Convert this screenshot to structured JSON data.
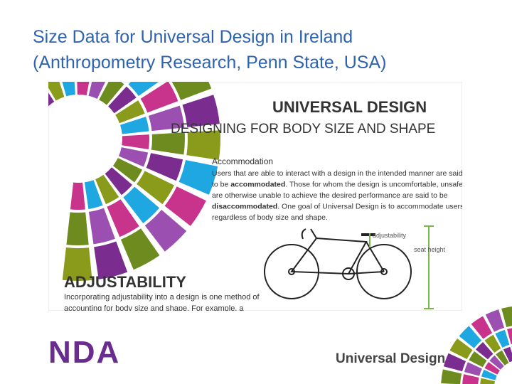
{
  "header": {
    "title": [
      "Size Data for Universal Design in Ireland",
      "(Anthropometry Research, Penn State, USA)"
    ]
  },
  "figure": {
    "heading": "UNIVERSAL DESIGN",
    "subheading": "DESIGNING FOR BODY SIZE AND SHAPE",
    "accommodation": {
      "title": "Accommodation",
      "lines": [
        [
          {
            "text": "Users that are able to interact with a design in the intended manner are said",
            "bold": false
          }
        ],
        [
          {
            "text": "to be ",
            "bold": false
          },
          {
            "text": "accommodated",
            "bold": true
          },
          {
            "text": ". Those for whom the design is uncomfortable, unsafe, or",
            "bold": false
          }
        ],
        [
          {
            "text": "are otherwise unable to achieve the desired performance are said to be",
            "bold": false
          }
        ],
        [
          {
            "text": "disaccommodated",
            "bold": true
          },
          {
            "text": ". One goal of Universal Design is to accommodate users",
            "bold": false
          }
        ],
        [
          {
            "text": "regardless of body size and shape.",
            "bold": false
          }
        ]
      ]
    },
    "bike_labels": [
      "adjustability",
      "seat height"
    ],
    "adjustability": {
      "title": "ADJUSTABILITY",
      "lines": [
        "Incorporating adjustability into a design is one method of",
        "accounting for body size and shape. For example, a"
      ]
    }
  },
  "footer": {
    "logo": "NDA",
    "brand": "Universal Design"
  }
}
